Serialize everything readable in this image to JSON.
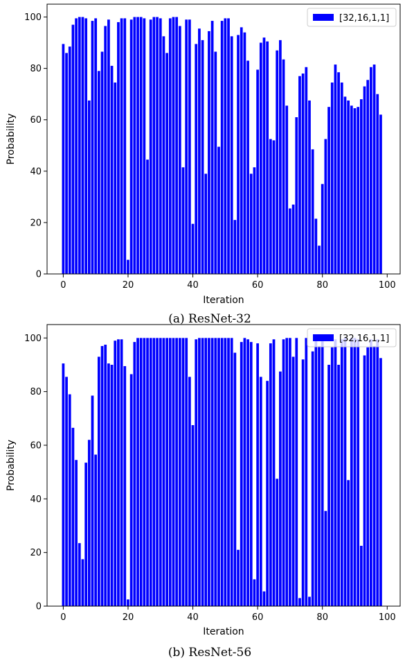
{
  "chart_data": [
    {
      "type": "bar",
      "caption": "(a) ResNet-32",
      "xlabel": "Iteration",
      "ylabel": "Probability",
      "xticks": [
        0,
        20,
        40,
        60,
        80,
        100
      ],
      "yticks": [
        0,
        20,
        40,
        60,
        80,
        100
      ],
      "xlim": [
        -5,
        104
      ],
      "ylim": [
        0,
        105
      ],
      "legend": {
        "label": "[32,16,1,1]",
        "placement": "top-right"
      },
      "color": "#0000ff",
      "x_start": 0,
      "values": [
        89.5,
        86,
        88.5,
        97,
        99.5,
        100,
        100,
        99.5,
        67.5,
        98.5,
        99.5,
        79,
        86.5,
        96.5,
        99,
        81,
        74.5,
        98,
        99.5,
        99.5,
        5.5,
        99,
        100,
        100,
        100,
        99.5,
        44.5,
        99,
        100,
        100,
        99.5,
        92.5,
        86,
        99.5,
        100,
        100,
        96.5,
        41.5,
        99,
        99,
        19.5,
        89.5,
        95.5,
        91,
        39,
        94.5,
        98.5,
        86.5,
        49.5,
        98.5,
        99.5,
        99.5,
        92.5,
        21,
        93,
        96,
        94,
        83,
        39,
        41.5,
        79.5,
        90,
        92,
        90.5,
        52.5,
        52,
        87,
        91,
        83.5,
        65.5,
        25.5,
        27,
        61,
        77,
        78,
        80.5,
        67.5,
        48.5,
        21.5,
        11,
        35,
        52.5,
        65,
        74.5,
        81.5,
        78.5,
        74.5,
        69,
        67.5,
        65.5,
        64.5,
        65,
        68,
        73,
        75.5,
        80.5,
        81.5,
        70,
        62
      ]
    },
    {
      "type": "bar",
      "caption": "(b) ResNet-56",
      "xlabel": "Iteration",
      "ylabel": "Probability",
      "xticks": [
        0,
        20,
        40,
        60,
        80,
        100
      ],
      "yticks": [
        0,
        20,
        40,
        60,
        80,
        100
      ],
      "xlim": [
        -5,
        104
      ],
      "ylim": [
        0,
        105
      ],
      "legend": {
        "label": "[32,16,1,1]",
        "placement": "top-right"
      },
      "color": "#0000ff",
      "x_start": 0,
      "values": [
        90.5,
        85.5,
        79,
        66.5,
        54.5,
        23.5,
        17.5,
        53.5,
        62,
        78.5,
        56.5,
        93,
        97,
        97.5,
        90.5,
        90,
        99,
        99.5,
        99.5,
        89.5,
        2.5,
        86.5,
        98.5,
        100,
        100,
        100,
        100,
        100,
        100,
        100,
        100,
        100,
        100,
        100,
        100,
        100,
        100,
        100,
        100,
        85.5,
        67.5,
        99.5,
        100,
        100,
        100,
        100,
        100,
        100,
        100,
        100,
        100,
        100,
        100,
        94.5,
        21,
        98.5,
        100,
        99.5,
        98.5,
        10,
        98,
        85.5,
        5.5,
        84,
        98,
        99.5,
        47.5,
        87.5,
        99.5,
        100,
        100,
        93,
        100,
        3,
        92,
        100,
        3.5,
        95,
        99.5,
        97,
        99.5,
        35.5,
        90,
        96.5,
        99.5,
        90,
        99.5,
        100,
        47,
        100,
        100,
        99.5,
        22.5,
        93.5,
        96.5,
        99.5,
        97,
        99.5,
        92.5
      ]
    }
  ]
}
